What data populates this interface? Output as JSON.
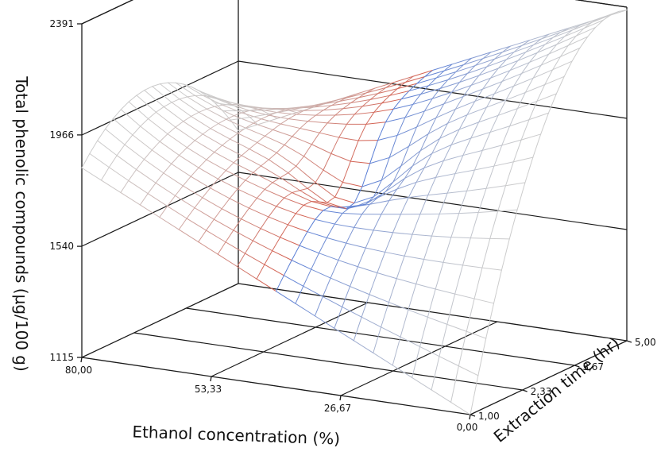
{
  "chart_data": {
    "type": "surface",
    "zlabel": "Total phenolic compounds (μg/100 g)",
    "xlabel": "Ethanol concentration (%)",
    "ylabel": "Extraction time (hr)",
    "x_ticks": [
      "80,00",
      "53,33",
      "26,67",
      "0,00"
    ],
    "y_ticks": [
      "1,00",
      "2,33",
      "3,67",
      "5,00"
    ],
    "z_ticks": [
      "1115",
      "1540",
      "1966",
      "2391"
    ],
    "x_range": [
      0,
      80
    ],
    "y_range": [
      1,
      5
    ],
    "z_range": [
      1115,
      2391
    ],
    "grid_resolution": 20,
    "surface_samples": {
      "corner_ethanol0_time1": 1115,
      "corner_ethanol0_time5": 2380,
      "corner_ethanol80_time1": 1840,
      "corner_ethanol80_time5": 1700,
      "saddle_point": {
        "ethanol": 40,
        "time": 3,
        "value": 1900
      }
    },
    "colors": {
      "low_ethanol": "#5b7fd6",
      "high_ethanol": "#d45a4a",
      "neutral": "#cccccc"
    }
  }
}
